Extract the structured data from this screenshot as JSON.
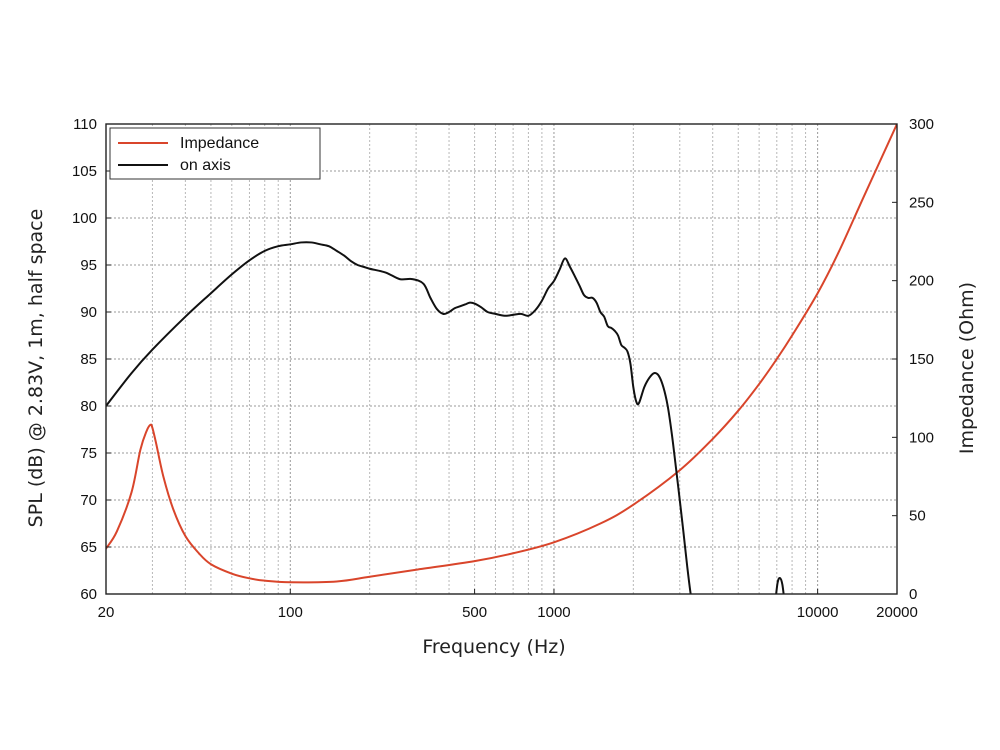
{
  "chart_data": {
    "type": "line",
    "xscale": "log",
    "xlabel": "Frequency (Hz)",
    "ylabel": "SPL (dB) @ 2.83V, 1m, half space",
    "y2label": "Impedance (Ohm)",
    "xlim": [
      20,
      20000
    ],
    "ylim": [
      60,
      110
    ],
    "y2lim": [
      0,
      300
    ],
    "xticks": [
      {
        "value": 20,
        "label": "20"
      },
      {
        "value": 100,
        "label": "100"
      },
      {
        "value": 500,
        "label": "500"
      },
      {
        "value": 1000,
        "label": "1000"
      },
      {
        "value": 10000,
        "label": "10000"
      },
      {
        "value": 20000,
        "label": "20000"
      }
    ],
    "yticks": [
      60,
      65,
      70,
      75,
      80,
      85,
      90,
      95,
      100,
      105,
      110
    ],
    "y2ticks": [
      0,
      50,
      100,
      150,
      200,
      250,
      300
    ],
    "grid": true,
    "legend_position": "top-left",
    "series": [
      {
        "name": "Impedance",
        "color": "#d9452b",
        "axis": "right",
        "x": [
          20,
          22,
          25,
          27,
          28.5,
          29.5,
          30,
          31,
          33,
          36,
          40,
          45,
          50,
          60,
          70,
          80,
          100,
          150,
          200,
          300,
          500,
          700,
          1000,
          1500,
          2000,
          3000,
          4000,
          5000,
          6000,
          7000,
          8000,
          10000,
          12000,
          15000,
          20000
        ],
        "y": [
          29,
          40,
          65,
          92,
          104,
          108,
          106,
          96,
          75,
          54,
          37,
          26,
          19,
          13,
          10,
          8.5,
          7.5,
          8,
          11,
          15.5,
          21,
          26,
          33,
          45,
          57,
          79,
          99,
          117,
          134,
          150,
          165,
          192,
          218,
          254,
          300
        ]
      },
      {
        "name": "on axis",
        "color": "#111111",
        "axis": "left",
        "segments": [
          {
            "x": [
              20,
              25,
              30,
              40,
              50,
              60,
              70,
              80,
              90,
              100,
              110,
              120,
              130,
              140,
              150,
              160,
              170,
              180,
              190,
              200,
              230,
              260,
              290,
              320,
              340,
              360,
              380,
              400,
              420,
              440,
              460,
              480,
              500,
              530,
              560,
              600,
              650,
              700,
              750,
              800,
              850,
              900,
              950,
              1000,
              1050,
              1100,
              1150,
              1200,
              1250,
              1300,
              1350,
              1400,
              1450,
              1500,
              1550,
              1600,
              1650,
              1700,
              1750,
              1800,
              1850,
              1900,
              1950,
              2000,
              2050,
              2100,
              2200,
              2300,
              2400,
              2500,
              2600,
              2700,
              2800,
              2900,
              3000,
              3100,
              3200,
              3300,
              3400
            ],
            "y": [
              80,
              83.5,
              86,
              89.5,
              92,
              94,
              95.5,
              96.5,
              97,
              97.2,
              97.4,
              97.4,
              97.2,
              97,
              96.5,
              96,
              95.4,
              95,
              94.8,
              94.6,
              94.2,
              93.5,
              93.5,
              93,
              91.5,
              90.3,
              89.8,
              90,
              90.4,
              90.6,
              90.8,
              91,
              90.9,
              90.5,
              90,
              89.8,
              89.6,
              89.7,
              89.8,
              89.6,
              90.2,
              91.2,
              92.5,
              93.3,
              94.5,
              95.7,
              94.8,
              93.8,
              92.8,
              91.8,
              91.5,
              91.5,
              91,
              90,
              89.5,
              88.5,
              88.3,
              88,
              87.5,
              86.5,
              86.2,
              85.8,
              84.5,
              82,
              80.5,
              80.3,
              82,
              83,
              83.5,
              83.2,
              82,
              80,
              77,
              73.5,
              70,
              66.5,
              63,
              60,
              58
            ]
          },
          {
            "x": [
              6900,
              7050,
              7200,
              7350,
              7500
            ],
            "y": [
              59,
              61.2,
              61.7,
              61,
              59
            ]
          }
        ]
      }
    ]
  }
}
